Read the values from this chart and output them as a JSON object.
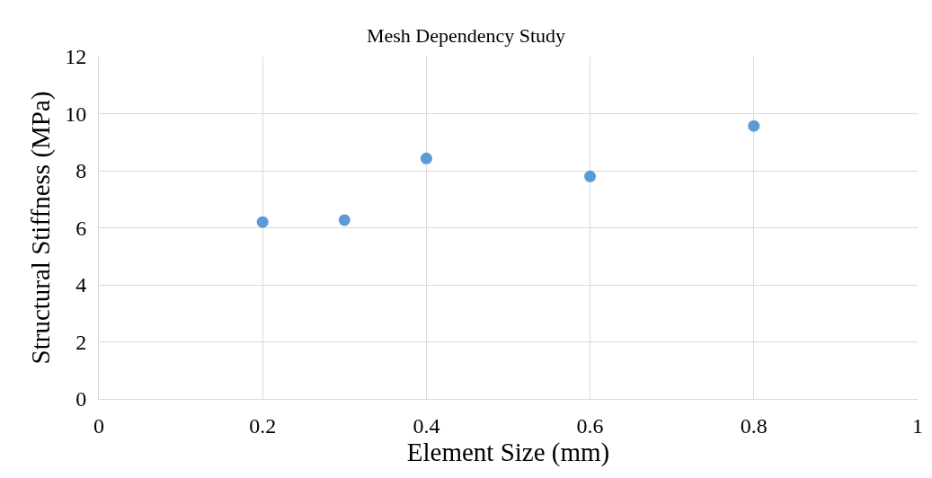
{
  "chart_data": {
    "type": "scatter",
    "title": "Mesh Dependency Study",
    "xlabel": "Element Size (mm)",
    "ylabel": "Structural Stiffness (MPa)",
    "x": [
      0.2,
      0.3,
      0.4,
      0.6,
      0.8
    ],
    "values": [
      6.2,
      6.27,
      8.43,
      7.8,
      9.57
    ],
    "color": "#5b9bd5",
    "xlim": [
      0,
      1
    ],
    "xticks": [
      0,
      0.2,
      0.4,
      0.6,
      0.8,
      1
    ],
    "ylim": [
      0,
      12
    ],
    "yticks": [
      0,
      2,
      4,
      6,
      8,
      10,
      12
    ],
    "grid": true,
    "marker": "circle"
  }
}
